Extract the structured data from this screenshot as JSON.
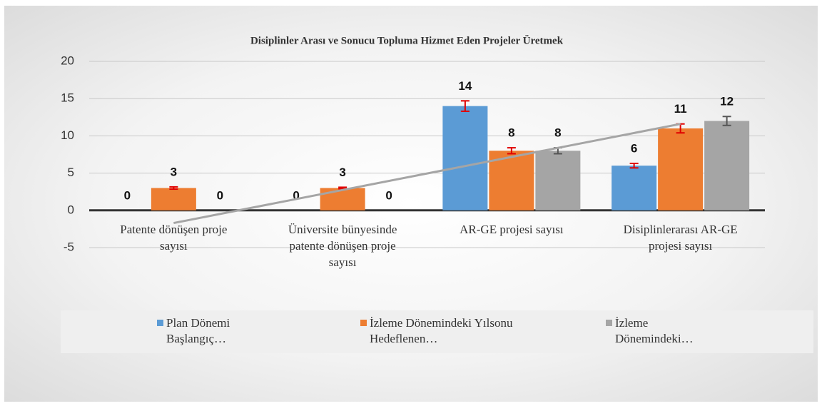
{
  "chart_data": {
    "type": "bar",
    "title": "Disiplinler Arası ve Sonucu Topluma Hizmet Eden Projeler Üretmek",
    "categories": [
      "Patente dönüşen proje sayısı",
      "Üniversite bünyesinde patente dönüşen proje sayısı",
      "AR-GE projesi sayısı",
      "Disiplinlerarası AR-GE projesi sayısı"
    ],
    "series": [
      {
        "name": "Plan Dönemi Başlangıç…",
        "color": "#5b9bd5",
        "error_color": "#e00000",
        "values": [
          0,
          0,
          14,
          6
        ],
        "errors": [
          null,
          null,
          0.7,
          0.3
        ]
      },
      {
        "name": "İzleme Dönemindeki Yılsonu Hedeflenen…",
        "color": "#ed7d31",
        "error_color": "#e00000",
        "values": [
          3,
          3,
          8,
          11
        ],
        "errors": [
          0.15,
          0.1,
          0.4,
          0.6
        ]
      },
      {
        "name": "İzleme Dönemindeki…",
        "color": "#a5a5a5",
        "error_color": "#555555",
        "values": [
          0,
          0,
          8,
          12
        ],
        "errors": [
          null,
          null,
          0.4,
          0.6
        ]
      }
    ],
    "trendline": {
      "color": "#a5a5a5",
      "values": [
        -1.7,
        11.6
      ]
    },
    "ylim": [
      -5,
      20
    ],
    "yticks": [
      -5,
      0,
      5,
      10,
      15,
      20
    ],
    "grid": true,
    "legend": "bottom"
  }
}
